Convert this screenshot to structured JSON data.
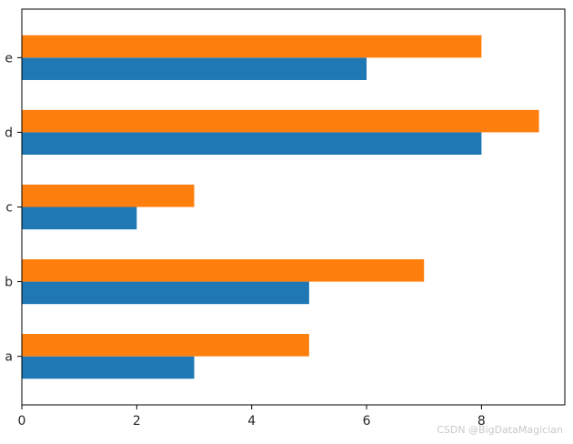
{
  "chart_data": {
    "type": "bar",
    "orientation": "horizontal",
    "categories": [
      "a",
      "b",
      "c",
      "d",
      "e"
    ],
    "series": [
      {
        "values": [
          3,
          5,
          2,
          8,
          6
        ],
        "color": "#1f77b4"
      },
      {
        "values": [
          5,
          7,
          3,
          9,
          8
        ],
        "color": "#ff7f0e"
      }
    ],
    "xticks": [
      0,
      2,
      4,
      6,
      8
    ],
    "xlim": [
      0,
      9.45
    ],
    "title": "",
    "xlabel": "",
    "ylabel": "",
    "grid": false,
    "legend": "none"
  },
  "watermark": "CSDN @BigDataMagician"
}
